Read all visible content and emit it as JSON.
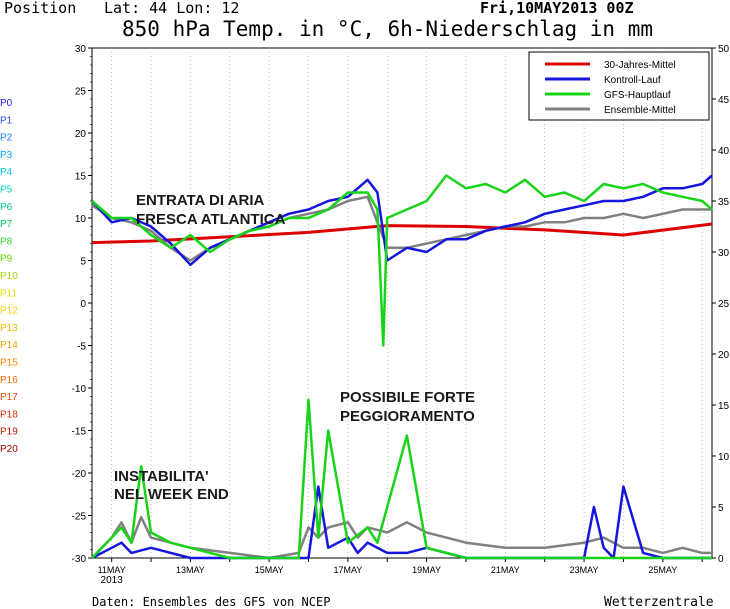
{
  "header": {
    "position_label": "Position",
    "coords": "Lat: 44 Lon: 12",
    "run": "Fri,10MAY2013 00Z",
    "title": "850 hPa Temp. in °C, 6h-Niederschlag in mm"
  },
  "footer": {
    "source": "Daten: Ensembles des GFS von NCEP",
    "brand": "Wetterzentrale"
  },
  "members": [
    "P0",
    "P1",
    "P2",
    "P3",
    "P4",
    "P5",
    "P6",
    "P7",
    "P8",
    "P9",
    "P10",
    "P11",
    "P12",
    "P13",
    "P14",
    "P15",
    "P16",
    "P17",
    "P18",
    "P19",
    "P20"
  ],
  "member_colors": [
    "#2020ff",
    "#2050ff",
    "#1080ff",
    "#00a8ff",
    "#00c8e0",
    "#00d8c0",
    "#00c890",
    "#00c860",
    "#30d030",
    "#60d800",
    "#a0d800",
    "#f0e000",
    "#ffd000",
    "#ffb800",
    "#ffa000",
    "#ff8800",
    "#ff6800",
    "#e84800",
    "#d03000",
    "#b81800",
    "#a00000"
  ],
  "annotations": {
    "a1_line1": "ENTRATA DI ARIA",
    "a1_line2": "FRESCA ATLANTICA",
    "a2_line1": "POSSIBILE FORTE",
    "a2_line2": "PEGGIORAMENTO",
    "a3_line1": "INSTABILITA'",
    "a3_line2": "NEL WEEK END"
  },
  "chart_data": {
    "type": "line",
    "title": "850 hPa Temp. in °C, 6h-Niederschlag in mm",
    "x_labels": [
      "11MAY",
      "13MAY",
      "15MAY",
      "17MAY",
      "19MAY",
      "21MAY",
      "23MAY",
      "25MAY"
    ],
    "x_label_year": "2013",
    "x_range_days": [
      10.5,
      26.25
    ],
    "y_left": {
      "label": "",
      "range": [
        -30,
        30
      ],
      "ticks": [
        30,
        25,
        20,
        15,
        10,
        5,
        0,
        -5,
        -10,
        -15,
        -20,
        -25,
        -30
      ]
    },
    "y_right": {
      "label": "",
      "range": [
        0,
        50
      ],
      "ticks": [
        50,
        45,
        40,
        35,
        30,
        25,
        20,
        15,
        10,
        5,
        0
      ]
    },
    "legend": {
      "placement": "top-right",
      "entries": [
        {
          "name": "30-Jahres-Mittel",
          "color": "#dd0000"
        },
        {
          "name": "Kontroll-Lauf",
          "color": "#1515dd"
        },
        {
          "name": "GFS-Hauptlauf",
          "color": "#18d418"
        },
        {
          "name": "Ensemble-Mittel",
          "color": "#808080"
        }
      ]
    },
    "series": [
      {
        "name": "30-Jahres-Mittel",
        "axis": "left",
        "color": "#dd0000",
        "x": [
          10.5,
          12,
          14,
          16,
          18,
          20,
          22,
          24,
          26.25
        ],
        "y": [
          7.1,
          7.3,
          7.8,
          8.3,
          9.1,
          9.0,
          8.6,
          8.0,
          9.3
        ]
      },
      {
        "name": "Kontroll-Lauf",
        "axis": "left",
        "color": "#1515dd",
        "x": [
          10.5,
          11,
          11.5,
          12,
          12.5,
          13,
          13.5,
          14,
          14.5,
          15,
          15.5,
          16,
          16.5,
          17,
          17.5,
          17.75,
          18,
          18.5,
          19,
          19.5,
          20,
          20.5,
          21,
          21.5,
          22,
          22.5,
          23,
          23.5,
          24,
          24.5,
          25,
          25.5,
          26,
          26.25
        ],
        "y": [
          12,
          9.5,
          10,
          9,
          7,
          4.5,
          6.5,
          7.5,
          8.5,
          9.5,
          10.5,
          11,
          12,
          12.5,
          14.5,
          13,
          5,
          6.5,
          6,
          7.5,
          7.5,
          8.5,
          9,
          9.5,
          10.5,
          11,
          11.5,
          12,
          12,
          12.5,
          13.5,
          13.5,
          14,
          15
        ]
      },
      {
        "name": "GFS-Hauptlauf",
        "axis": "left",
        "color": "#18d418",
        "x": [
          10.5,
          11,
          11.5,
          12,
          12.5,
          13,
          13.5,
          14,
          14.5,
          15,
          15.5,
          16,
          16.5,
          17,
          17.5,
          17.75,
          17.9,
          18,
          18.5,
          19,
          19.5,
          20,
          20.5,
          21,
          21.5,
          22,
          22.5,
          23,
          23.5,
          24,
          24.5,
          25,
          25.5,
          26,
          26.25
        ],
        "y": [
          12,
          10,
          10,
          8,
          6.5,
          8,
          6,
          7.5,
          8.5,
          9,
          10,
          10,
          11,
          13,
          13,
          11,
          -5,
          10,
          11,
          12,
          15,
          13.5,
          14,
          13,
          14.5,
          12.5,
          13,
          12,
          14,
          13.5,
          14,
          13,
          12.5,
          12,
          11
        ]
      },
      {
        "name": "Ensemble-Mittel",
        "axis": "left",
        "color": "#808080",
        "x": [
          10.5,
          11,
          11.5,
          12,
          12.5,
          13,
          13.5,
          14,
          14.5,
          15,
          15.5,
          16,
          16.5,
          17,
          17.5,
          18,
          18.5,
          19,
          19.5,
          20,
          20.5,
          21,
          21.5,
          22,
          22.5,
          23,
          23.5,
          24,
          24.5,
          25,
          25.5,
          26,
          26.25
        ],
        "y": [
          11.5,
          10,
          9.5,
          8.5,
          6.5,
          5,
          6.5,
          7.5,
          8.5,
          9,
          10,
          10.5,
          11,
          12,
          12.5,
          6.5,
          6.5,
          7,
          7.5,
          8,
          8.5,
          9,
          9,
          9.5,
          9.5,
          10,
          10,
          10.5,
          10,
          10.5,
          11,
          11,
          11
        ]
      },
      {
        "name": "Kontroll-Lauf",
        "axis": "right",
        "color": "#1515dd",
        "x": [
          10.5,
          11,
          11.25,
          11.5,
          12,
          13,
          15,
          16,
          16.25,
          16.5,
          17,
          17.25,
          17.5,
          18,
          18.5,
          19,
          20,
          22,
          23,
          23.25,
          23.5,
          23.75,
          24,
          24.5,
          25,
          26,
          26.25
        ],
        "y": [
          0,
          1,
          1.5,
          0.5,
          1,
          0,
          0,
          0,
          7,
          1,
          2,
          0.5,
          1.5,
          0.5,
          0.5,
          1,
          0,
          0,
          0,
          5,
          1,
          0,
          7,
          0.5,
          0,
          0,
          0
        ]
      },
      {
        "name": "GFS-Hauptlauf",
        "axis": "right",
        "color": "#18d418",
        "x": [
          10.5,
          11,
          11.25,
          11.5,
          11.75,
          12,
          12.5,
          13,
          14,
          15,
          15.75,
          16,
          16.25,
          16.5,
          17,
          17.5,
          17.75,
          18.5,
          19,
          20,
          21,
          23,
          24,
          25,
          26,
          26.25
        ],
        "y": [
          0,
          2,
          3,
          1.5,
          9,
          2.5,
          1.5,
          1,
          0,
          0,
          0,
          15.5,
          2,
          12.5,
          1.5,
          3,
          1.5,
          12,
          1,
          0,
          0,
          0,
          0,
          0,
          0,
          0
        ]
      },
      {
        "name": "Ensemble-Mittel",
        "axis": "right",
        "color": "#808080",
        "x": [
          10.5,
          11,
          11.25,
          11.5,
          11.75,
          12,
          12.5,
          13,
          14,
          15,
          15.75,
          16,
          16.25,
          16.5,
          17,
          17.25,
          17.5,
          18,
          18.5,
          19,
          19.5,
          20,
          21,
          22,
          23,
          23.5,
          24,
          24.5,
          25,
          25.5,
          26,
          26.25
        ],
        "y": [
          0,
          2,
          3.5,
          1.5,
          4,
          2,
          1.5,
          1,
          0.5,
          0,
          0.5,
          3,
          2,
          3,
          3.5,
          2,
          3,
          2.5,
          3.5,
          2.5,
          2,
          1.5,
          1,
          1,
          1.5,
          2,
          1,
          1,
          0.5,
          1,
          0.5,
          0.5
        ]
      }
    ]
  }
}
